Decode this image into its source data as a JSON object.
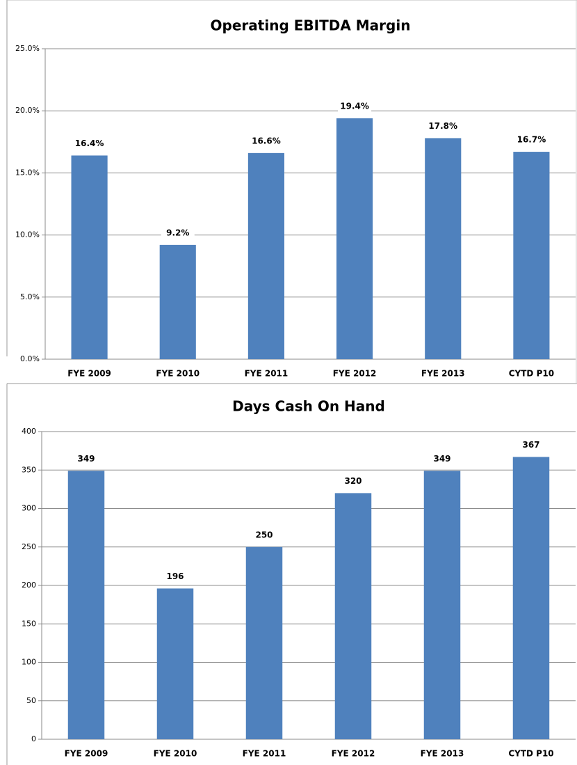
{
  "chart_data": [
    {
      "type": "bar",
      "title": "Operating EBITDA Margin",
      "categories": [
        "FYE 2009",
        "FYE 2010",
        "FYE 2011",
        "FYE 2012",
        "FYE 2013",
        "CYTD P10"
      ],
      "values": [
        16.4,
        9.2,
        16.6,
        19.4,
        17.8,
        16.7
      ],
      "value_labels": [
        "16.4%",
        "9.2%",
        "16.6%",
        "19.4%",
        "17.8%",
        "16.7%"
      ],
      "color": "#4f81bd",
      "ylim": [
        0,
        25
      ],
      "yticks": [
        {
          "value": 0,
          "label": "0.0%"
        },
        {
          "value": 5,
          "label": "5.0%"
        },
        {
          "value": 10,
          "label": "10.0%"
        },
        {
          "value": 15,
          "label": "15.0%"
        },
        {
          "value": 20,
          "label": "20.0%"
        },
        {
          "value": 25,
          "label": "25.0%"
        }
      ],
      "grid": true
    },
    {
      "type": "bar",
      "title": "Days Cash On Hand",
      "categories": [
        "FYE 2009",
        "FYE 2010",
        "FYE 2011",
        "FYE 2012",
        "FYE 2013",
        "CYTD P10"
      ],
      "values": [
        349,
        196,
        250,
        320,
        349,
        367
      ],
      "color": "#4f81bd",
      "ylim": [
        0,
        400
      ],
      "yticks": [
        0,
        50,
        100,
        150,
        200,
        250,
        300,
        350,
        400
      ],
      "grid": true
    }
  ]
}
